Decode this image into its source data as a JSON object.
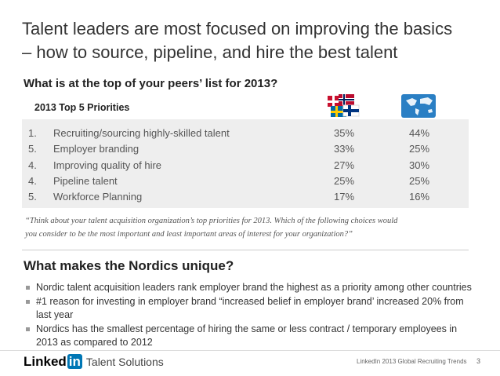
{
  "title_lines": [
    "Talent leaders are most focused on improving the basics",
    "– how to source, pipeline, and hire the best talent"
  ],
  "question": "What is at the top of your peers’ list for 2013?",
  "table": {
    "caption": "2013 Top 5 Priorities",
    "rows": [
      [
        "1.",
        "Recruiting/sourcing highly-skilled talent",
        "35%",
        "44%"
      ],
      [
        "5.",
        "Employer branding",
        "33%",
        "25%"
      ],
      [
        "4.",
        "Improving quality of hire",
        "27%",
        "30%"
      ],
      [
        "4.",
        "Pipeline talent",
        "25%",
        "25%"
      ],
      [
        "5.",
        "Workforce Planning",
        "17%",
        "16%"
      ]
    ]
  },
  "quote_lines": [
    "“Think about your talent acquisition organization’s top priorities for 2013. Which of the following choices would",
    "you consider to be the most important and least important areas of interest for your organization?”"
  ],
  "section_heading": "What makes the Nordics unique?",
  "bullets": [
    [
      "Nordic talent acquisition leaders rank employer brand the highest as a priority among other countries"
    ],
    [
      "#1 reason for investing in employer brand “increased belief in employer brand’ increased 20% from",
      "last year"
    ],
    [
      "Nordics has the smallest percentage of hiring the same or less contract / temporary employees in",
      "2013 as compared to 2012"
    ]
  ],
  "footer": {
    "logo_linked": "Linked",
    "logo_in": "in",
    "logo_product": "Talent Solutions",
    "source": "LinkedIn 2013 Global Recruiting Trends",
    "page": "3"
  }
}
